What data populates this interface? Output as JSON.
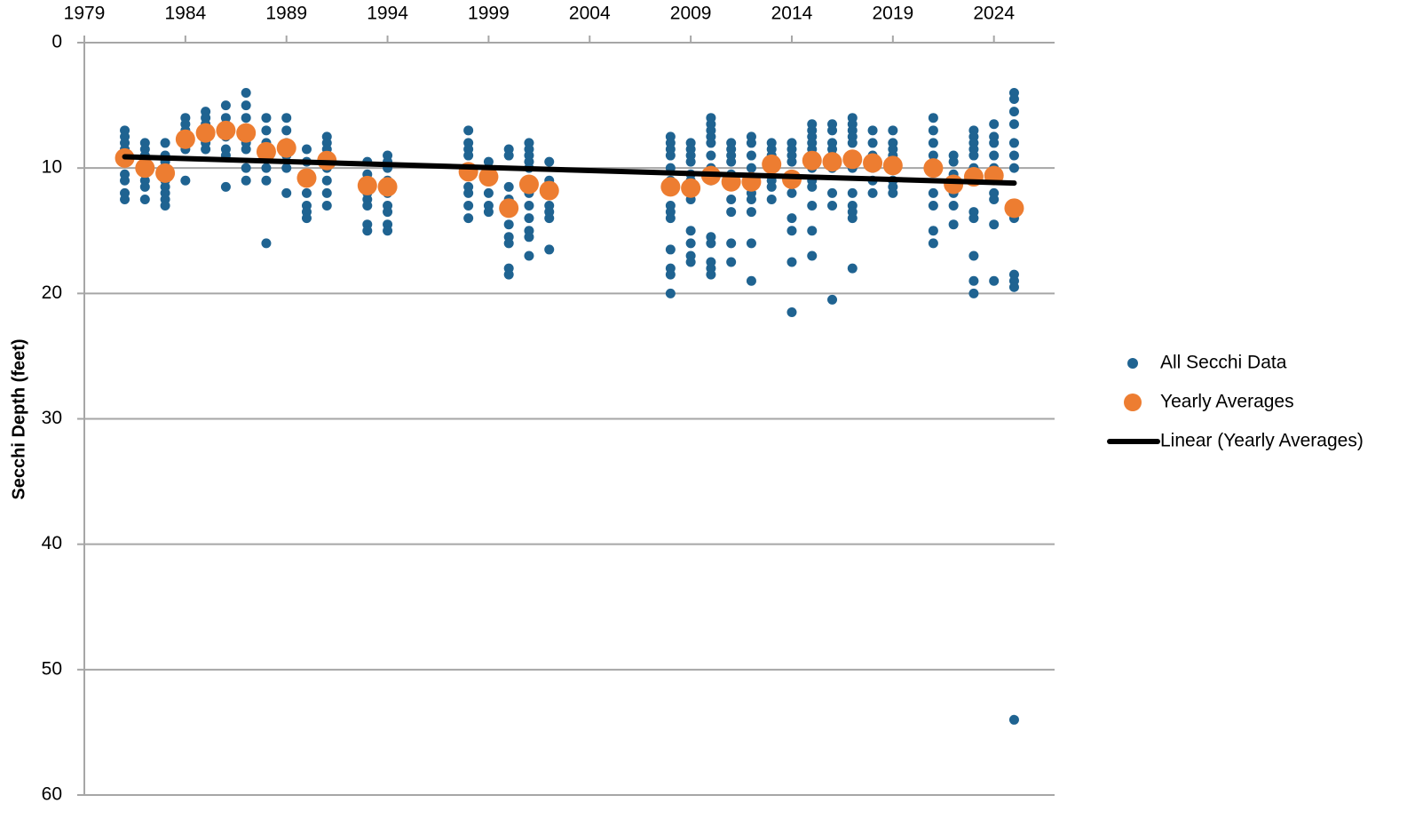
{
  "chart_data": {
    "type": "scatter",
    "y_label": "Secchi Depth (feet)",
    "xlim": [
      1979,
      2027
    ],
    "xticks": [
      1979,
      1984,
      1989,
      1994,
      1999,
      2004,
      2009,
      2014,
      2019,
      2024
    ],
    "ylim": [
      0,
      60
    ],
    "yticks": [
      0,
      10,
      20,
      30,
      40,
      50,
      60
    ],
    "y_inverted": true,
    "grid": true,
    "legend": "right",
    "series": [
      {
        "name": "All Secchi Data",
        "color": "#1f6391",
        "kind": "points",
        "x": [
          1981,
          1981,
          1981,
          1981,
          1981,
          1981,
          1981,
          1981,
          1981,
          1982,
          1982,
          1982,
          1982,
          1982,
          1982,
          1982,
          1983,
          1983,
          1983,
          1983,
          1983,
          1983,
          1983,
          1983,
          1984,
          1984,
          1984,
          1984,
          1984,
          1984,
          1985,
          1985,
          1985,
          1985,
          1985,
          1985,
          1985,
          1986,
          1986,
          1986,
          1986,
          1986,
          1986,
          1986,
          1987,
          1987,
          1987,
          1987,
          1987,
          1987,
          1987,
          1987,
          1988,
          1988,
          1988,
          1988,
          1988,
          1988,
          1988,
          1989,
          1989,
          1989,
          1989,
          1989,
          1989,
          1990,
          1990,
          1990,
          1990,
          1990,
          1990,
          1990,
          1991,
          1991,
          1991,
          1991,
          1991,
          1991,
          1991,
          1991,
          1993,
          1993,
          1993,
          1993,
          1993,
          1993,
          1993,
          1993,
          1994,
          1994,
          1994,
          1994,
          1994,
          1994,
          1994,
          1994,
          1994,
          1998,
          1998,
          1998,
          1998,
          1998,
          1998,
          1998,
          1998,
          1998,
          1999,
          1999,
          1999,
          1999,
          1999,
          1999,
          2000,
          2000,
          2000,
          2000,
          2000,
          2000,
          2000,
          2000,
          2000,
          2001,
          2001,
          2001,
          2001,
          2001,
          2001,
          2001,
          2001,
          2001,
          2001,
          2001,
          2001,
          2002,
          2002,
          2002,
          2002,
          2002,
          2002,
          2002,
          2008,
          2008,
          2008,
          2008,
          2008,
          2008,
          2008,
          2008,
          2008,
          2008,
          2008,
          2008,
          2008,
          2009,
          2009,
          2009,
          2009,
          2009,
          2009,
          2009,
          2009,
          2009,
          2009,
          2009,
          2010,
          2010,
          2010,
          2010,
          2010,
          2010,
          2010,
          2010,
          2010,
          2010,
          2010,
          2010,
          2010,
          2011,
          2011,
          2011,
          2011,
          2011,
          2011,
          2011,
          2011,
          2011,
          2012,
          2012,
          2012,
          2012,
          2012,
          2012,
          2012,
          2012,
          2012,
          2012,
          2013,
          2013,
          2013,
          2013,
          2013,
          2013,
          2013,
          2014,
          2014,
          2014,
          2014,
          2014,
          2014,
          2014,
          2014,
          2014,
          2015,
          2015,
          2015,
          2015,
          2015,
          2015,
          2015,
          2015,
          2015,
          2015,
          2015,
          2015,
          2016,
          2016,
          2016,
          2016,
          2016,
          2016,
          2016,
          2016,
          2016,
          2017,
          2017,
          2017,
          2017,
          2017,
          2017,
          2017,
          2017,
          2017,
          2017,
          2017,
          2017,
          2018,
          2018,
          2018,
          2018,
          2018,
          2018,
          2019,
          2019,
          2019,
          2019,
          2019,
          2019,
          2019,
          2019,
          2021,
          2021,
          2021,
          2021,
          2021,
          2021,
          2021,
          2021,
          2021,
          2022,
          2022,
          2022,
          2022,
          2022,
          2022,
          2023,
          2023,
          2023,
          2023,
          2023,
          2023,
          2023,
          2023,
          2023,
          2023,
          2023,
          2024,
          2024,
          2024,
          2024,
          2024,
          2024,
          2024,
          2024,
          2024,
          2025,
          2025,
          2025,
          2025,
          2025,
          2025,
          2025,
          2025,
          2025,
          2025,
          2025,
          2025
        ],
        "values": [
          7,
          7.5,
          8,
          8.5,
          9,
          10.5,
          11,
          12,
          12.5,
          8,
          8.5,
          9,
          10,
          11,
          11.5,
          12.5,
          8,
          9,
          9.5,
          11,
          11.5,
          12,
          12.5,
          13,
          6,
          6.5,
          7,
          8,
          8.5,
          11,
          5.5,
          6,
          6.5,
          7,
          7.5,
          8,
          8.5,
          5,
          6,
          6.5,
          7.5,
          8.5,
          9,
          11.5,
          4,
          5,
          6,
          7,
          8,
          8.5,
          10,
          11,
          6,
          7,
          8,
          9,
          10,
          11,
          16,
          6,
          7,
          8,
          9,
          10,
          12,
          8.5,
          9.5,
          11,
          12,
          13,
          13.5,
          14,
          7.5,
          8,
          8.5,
          9,
          10,
          11,
          12,
          13,
          9.5,
          10.5,
          11,
          12,
          12.5,
          13,
          14.5,
          15,
          9,
          9.5,
          10,
          11,
          12,
          13,
          13.5,
          14.5,
          15,
          7,
          8,
          8.5,
          9,
          10,
          11.5,
          12,
          13,
          14,
          9.5,
          10,
          11,
          12,
          13,
          13.5,
          8.5,
          9,
          11.5,
          12.5,
          14.5,
          15.5,
          16,
          18,
          18.5,
          8,
          8.5,
          9,
          9.5,
          10,
          11,
          12,
          13,
          14,
          15,
          15.5,
          17,
          9.5,
          11,
          12,
          13,
          13.5,
          14,
          16.5,
          7.5,
          8,
          8.5,
          9,
          10,
          11,
          13,
          13.5,
          14,
          16.5,
          18,
          18.5,
          20,
          8,
          8.5,
          9,
          9.5,
          10.5,
          11,
          12.5,
          15,
          16,
          17,
          17.5,
          6,
          6.5,
          7,
          7.5,
          8,
          9,
          10,
          11,
          15.5,
          16,
          17.5,
          18,
          18.5,
          8,
          8.5,
          9,
          9.5,
          10.5,
          12.5,
          13.5,
          16,
          17.5,
          7.5,
          8,
          9,
          10,
          11,
          12,
          12.5,
          13.5,
          16,
          19,
          8,
          8.5,
          9,
          10,
          11,
          11.5,
          12.5,
          8,
          8.5,
          9,
          9.5,
          12,
          14,
          15,
          17.5,
          21.5,
          6.5,
          7,
          7.5,
          8,
          8.5,
          9,
          10,
          11,
          11.5,
          13,
          15,
          17,
          6.5,
          7,
          8,
          8.5,
          9,
          10,
          12,
          13,
          20.5,
          6,
          6.5,
          7,
          7.5,
          8,
          9,
          10,
          12,
          13,
          13.5,
          14,
          18,
          7,
          8,
          9,
          10,
          11,
          12,
          7,
          8,
          8.5,
          9,
          10,
          11,
          11.5,
          12,
          6,
          7,
          8,
          9,
          10,
          12,
          13,
          15,
          16,
          9,
          9.5,
          10.5,
          12,
          13,
          14.5,
          7,
          7.5,
          8,
          8.5,
          9,
          10,
          13.5,
          14,
          17,
          19,
          20,
          6.5,
          7.5,
          8,
          9,
          10,
          12,
          12.5,
          14.5,
          19,
          4,
          4.5,
          5.5,
          6.5,
          8,
          9,
          10,
          14,
          18.5,
          19,
          19.5,
          54
        ]
      },
      {
        "name": "Yearly Averages",
        "color": "#ed7d31",
        "kind": "points",
        "x": [
          1981,
          1982,
          1983,
          1984,
          1985,
          1986,
          1987,
          1988,
          1989,
          1990,
          1991,
          1993,
          1994,
          1998,
          1999,
          2000,
          2001,
          2002,
          2008,
          2009,
          2010,
          2011,
          2012,
          2013,
          2014,
          2015,
          2016,
          2017,
          2018,
          2019,
          2021,
          2022,
          2023,
          2024,
          2025
        ],
        "values": [
          9.2,
          10,
          10.4,
          7.7,
          7.2,
          7,
          7.2,
          8.7,
          8.4,
          10.8,
          9.4,
          11.4,
          11.5,
          10.3,
          10.7,
          13.2,
          11.3,
          11.8,
          11.5,
          11.6,
          10.6,
          11.1,
          11.1,
          9.7,
          10.9,
          9.4,
          9.5,
          9.3,
          9.6,
          9.8,
          10,
          11.3,
          10.7,
          10.6,
          13.2
        ]
      },
      {
        "name": "Linear (Yearly Averages)",
        "color": "#000000",
        "kind": "line",
        "x": [
          1981,
          2025
        ],
        "values": [
          9.1,
          11.2
        ]
      }
    ]
  }
}
